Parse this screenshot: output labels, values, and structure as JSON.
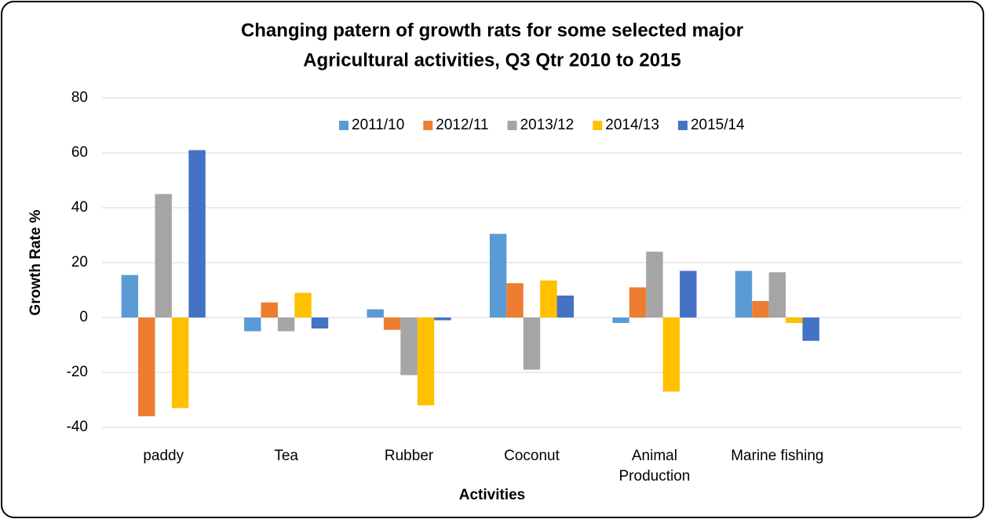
{
  "chart_data": {
    "type": "bar",
    "title": [
      "Changing patern of growth rats for some selected major",
      "Agricultural activities, Q3  Qtr 2010 to 2015"
    ],
    "x_label": "Activities",
    "y_label": "Growth Rate %",
    "categories": [
      "paddy",
      "Tea",
      "Rubber",
      "Coconut",
      "Animal Production",
      "Marine fishing",
      null
    ],
    "series": [
      {
        "name": "2011/10",
        "color": "#5b9bd5",
        "values": [
          15.5,
          -5,
          3,
          30.5,
          -2,
          17,
          null
        ]
      },
      {
        "name": "2012/11",
        "color": "#ed7d31",
        "values": [
          -36,
          5.5,
          -4.5,
          12.5,
          11,
          6,
          null
        ]
      },
      {
        "name": "2013/12",
        "color": "#a5a5a5",
        "values": [
          45,
          -5,
          -21,
          -19,
          24,
          16.5,
          null
        ]
      },
      {
        "name": "2014/13",
        "color": "#ffc000",
        "values": [
          -33,
          9,
          -32,
          13.5,
          -27,
          -2,
          null
        ]
      },
      {
        "name": "2015/14",
        "color": "#4472c4",
        "values": [
          61,
          -4,
          -1,
          8,
          17,
          -8.5,
          null
        ]
      }
    ],
    "ylim": [
      -40,
      80
    ],
    "yticks": [
      -40,
      -20,
      0,
      20,
      40,
      60,
      80
    ],
    "grid": true,
    "legend": "top"
  }
}
